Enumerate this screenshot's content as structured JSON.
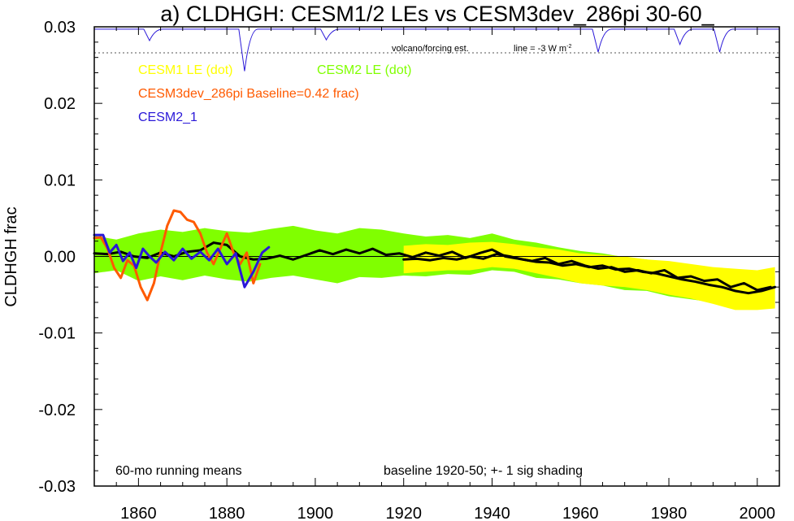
{
  "chart_data": {
    "type": "line",
    "title": "a) CLDHGH: CESM1/2 LEs vs CESM3dev_286pi 30-60_",
    "ylabel": "CLDHGH frac",
    "xlabel": "",
    "xlim": [
      1850,
      2005
    ],
    "ylim": [
      -0.03,
      0.03
    ],
    "x_ticks": [
      1860,
      1880,
      1900,
      1920,
      1940,
      1960,
      1980,
      2000
    ],
    "y_ticks": [
      {
        "value": 0.03,
        "label": "0.03"
      },
      {
        "value": 0.02,
        "label": "0.02"
      },
      {
        "value": 0.01,
        "label": "0.01"
      },
      {
        "value": 0.0,
        "label": "0.00"
      },
      {
        "value": -0.01,
        "label": "-0.01"
      },
      {
        "value": -0.02,
        "label": "-0.02"
      },
      {
        "value": -0.03,
        "label": "-0.03"
      }
    ],
    "legend": [
      {
        "label": "CESM1 LE (dot)",
        "color": "#ffff00"
      },
      {
        "label": "CESM2 LE (dot)",
        "color": "#80ff00"
      },
      {
        "label": "CESM3dev_286pi Baseline=0.42 frac)",
        "color": "#ff5a00"
      },
      {
        "label": "CESM2_1",
        "color": "#2a18d8"
      }
    ],
    "annotations": {
      "volcano_label": "volcano/forcing est.",
      "line_label": "line = -3 W m",
      "line_label_sup": "-2",
      "running_mean": "60-mo running means",
      "baseline_note": "baseline 1920-50; +- 1 sig shading"
    },
    "reference_line_y": 0.0,
    "volcano_threshold_y": 0.0266,
    "volcano_forcing": {
      "baseline_y": 0.0297,
      "dips": [
        {
          "x": 1862.5,
          "y": 0.0282
        },
        {
          "x": 1884,
          "y": 0.0242
        },
        {
          "x": 1902.5,
          "y": 0.0283
        },
        {
          "x": 1964,
          "y": 0.0267
        },
        {
          "x": 1982.5,
          "y": 0.0277
        },
        {
          "x": 1991.5,
          "y": 0.0267
        }
      ]
    },
    "series": [
      {
        "name": "CESM2 LE",
        "kind": "band",
        "color": "#80ff00",
        "x": [
          1850,
          1855,
          1860,
          1865,
          1870,
          1875,
          1880,
          1885,
          1890,
          1895,
          1900,
          1905,
          1910,
          1915,
          1920,
          1925,
          1930,
          1935,
          1940,
          1945,
          1950,
          1955,
          1960,
          1965,
          1970,
          1975,
          1980,
          1985,
          1990,
          1995,
          2000,
          2004
        ],
        "upper": [
          0.0027,
          0.0022,
          0.003,
          0.0035,
          0.0032,
          0.0037,
          0.0033,
          0.0031,
          0.0036,
          0.004,
          0.0034,
          0.003,
          0.0037,
          0.0035,
          0.003,
          0.0026,
          0.0028,
          0.0024,
          0.003,
          0.0022,
          0.0018,
          0.0012,
          0.0007,
          0.0004,
          -0.0001,
          -0.0004,
          -0.001,
          -0.0015,
          -0.002,
          -0.0022,
          -0.0025,
          -0.0025
        ],
        "lower": [
          -0.0022,
          -0.0018,
          -0.0032,
          -0.0026,
          -0.0031,
          -0.0025,
          -0.003,
          -0.0033,
          -0.0028,
          -0.0025,
          -0.003,
          -0.0035,
          -0.0027,
          -0.0028,
          -0.0025,
          -0.0026,
          -0.0023,
          -0.0024,
          -0.0018,
          -0.002,
          -0.0028,
          -0.003,
          -0.0035,
          -0.0038,
          -0.0044,
          -0.0045,
          -0.0052,
          -0.0056,
          -0.006,
          -0.0065,
          -0.0068,
          -0.0066
        ]
      },
      {
        "name": "CESM1 LE",
        "kind": "band",
        "color": "#ffff00",
        "x": [
          1920,
          1925,
          1930,
          1935,
          1940,
          1945,
          1950,
          1955,
          1960,
          1965,
          1970,
          1975,
          1980,
          1985,
          1990,
          1995,
          2000,
          2004
        ],
        "upper": [
          0.0014,
          0.0016,
          0.0015,
          0.0018,
          0.0019,
          0.0016,
          0.0012,
          0.0009,
          0.0004,
          0.0002,
          0.0,
          -0.0004,
          -0.0006,
          -0.001,
          -0.0014,
          -0.0016,
          -0.0018,
          -0.0014
        ],
        "lower": [
          -0.0022,
          -0.002,
          -0.0018,
          -0.0018,
          -0.0014,
          -0.0016,
          -0.0022,
          -0.0028,
          -0.0035,
          -0.0038,
          -0.004,
          -0.0044,
          -0.005,
          -0.0055,
          -0.0062,
          -0.007,
          -0.007,
          -0.0068
        ]
      },
      {
        "name": "CESM2 LE mean",
        "kind": "line",
        "color": "#000000",
        "width": 3,
        "x": [
          1850,
          1853,
          1856,
          1859,
          1862,
          1865,
          1868,
          1871,
          1874,
          1877,
          1880,
          1883,
          1886,
          1889,
          1892,
          1895,
          1898,
          1901,
          1904,
          1907,
          1910,
          1913,
          1916,
          1919,
          1922,
          1925,
          1928,
          1931,
          1934,
          1937,
          1940,
          1943,
          1946,
          1949,
          1952,
          1955,
          1958,
          1961,
          1964,
          1967,
          1970,
          1973,
          1976,
          1979,
          1982,
          1985,
          1988,
          1991,
          1994,
          1997,
          2000,
          2003
        ],
        "y": [
          0.0004,
          0.0003,
          0.0006,
          0.0,
          -0.0002,
          0.0005,
          0.0,
          0.0006,
          0.0008,
          0.0018,
          0.0015,
          0.0,
          -0.0004,
          -0.0003,
          0.0001,
          -0.0004,
          0.0002,
          0.0008,
          0.0003,
          0.0009,
          0.0004,
          0.001,
          0.0002,
          0.0004,
          -0.0001,
          0.0005,
          0.0001,
          0.0006,
          -0.0002,
          0.0004,
          0.0009,
          0.0,
          -0.0003,
          -0.0006,
          -0.0002,
          -0.001,
          -0.0006,
          -0.0012,
          -0.0016,
          -0.0014,
          -0.002,
          -0.0018,
          -0.0022,
          -0.0018,
          -0.0028,
          -0.0026,
          -0.0032,
          -0.003,
          -0.004,
          -0.0035,
          -0.0044,
          -0.004
        ]
      },
      {
        "name": "CESM1 LE mean",
        "kind": "line",
        "color": "#000000",
        "width": 3,
        "x": [
          1920,
          1923,
          1926,
          1929,
          1932,
          1935,
          1938,
          1941,
          1944,
          1947,
          1950,
          1953,
          1956,
          1959,
          1962,
          1965,
          1968,
          1971,
          1974,
          1977,
          1980,
          1983,
          1986,
          1989,
          1992,
          1995,
          1998,
          2001,
          2004
        ],
        "y": [
          -0.0004,
          -0.0003,
          -0.0005,
          -0.0002,
          -0.0004,
          0.0,
          -0.0003,
          0.0003,
          0.0,
          -0.0004,
          -0.0007,
          -0.0008,
          -0.0012,
          -0.001,
          -0.0014,
          -0.0012,
          -0.0017,
          -0.0016,
          -0.002,
          -0.0022,
          -0.0026,
          -0.003,
          -0.0033,
          -0.0037,
          -0.004,
          -0.0045,
          -0.0048,
          -0.0045,
          -0.004
        ]
      },
      {
        "name": "CESM3dev_286pi",
        "kind": "line",
        "color": "#ff5a00",
        "width": 3,
        "x": [
          1850,
          1851.5,
          1853,
          1854.5,
          1856,
          1857.5,
          1859,
          1860.5,
          1862,
          1863.5,
          1865,
          1866.5,
          1868,
          1869.5,
          1871,
          1872.5,
          1874,
          1875.5,
          1877,
          1878.5,
          1880,
          1881.5,
          1883,
          1884.5,
          1886,
          1887.5
        ],
        "y": [
          0.0024,
          0.0025,
          0.001,
          -0.0015,
          -0.0028,
          -0.0005,
          -0.0012,
          -0.004,
          -0.0057,
          -0.0035,
          0.0005,
          0.004,
          0.006,
          0.0058,
          0.0048,
          0.0045,
          0.003,
          0.0005,
          -0.001,
          0.001,
          0.003,
          0.0005,
          -0.001,
          0.0005,
          -0.0035,
          -0.001
        ]
      },
      {
        "name": "CESM2_1",
        "kind": "line",
        "color": "#2a18d8",
        "width": 3,
        "x": [
          1850,
          1852,
          1853.5,
          1855,
          1856.5,
          1858,
          1859.5,
          1861,
          1862.5,
          1864,
          1866,
          1868,
          1870,
          1872,
          1874,
          1876,
          1878,
          1880,
          1882,
          1884,
          1886,
          1888,
          1889.5
        ],
        "y": [
          0.0028,
          0.0028,
          0.0005,
          0.0015,
          -0.0006,
          0.0005,
          -0.0015,
          0.001,
          0.0,
          -0.0008,
          0.0006,
          -0.0005,
          0.001,
          -0.0003,
          0.0006,
          -0.0005,
          0.001,
          -0.001,
          0.0004,
          -0.004,
          -0.002,
          0.0005,
          0.0012
        ]
      }
    ]
  }
}
